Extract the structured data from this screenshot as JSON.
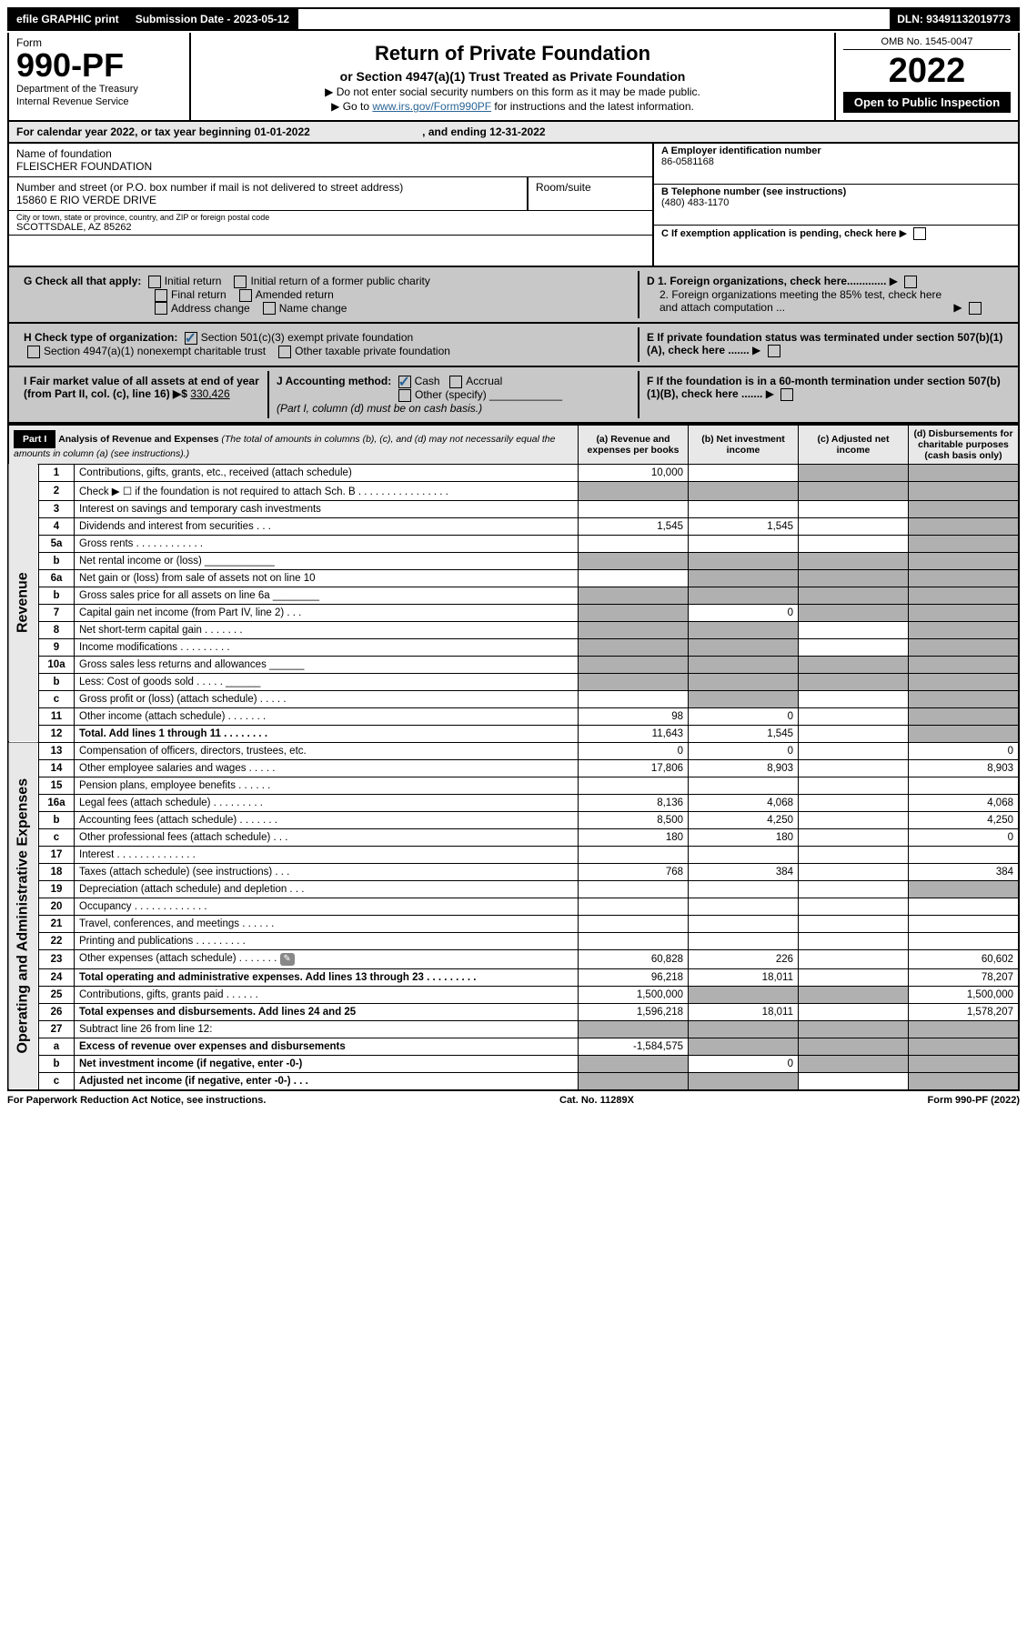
{
  "topbar": {
    "efile": "efile GRAPHIC print",
    "submission_label": "Submission Date - 2023-05-12",
    "dln": "DLN: 93491132019773"
  },
  "header": {
    "form_word": "Form",
    "form_number": "990-PF",
    "dept1": "Department of the Treasury",
    "dept2": "Internal Revenue Service",
    "title": "Return of Private Foundation",
    "subtitle": "or Section 4947(a)(1) Trust Treated as Private Foundation",
    "note1": "▶ Do not enter social security numbers on this form as it may be made public.",
    "note2_pre": "▶ Go to ",
    "note2_link": "www.irs.gov/Form990PF",
    "note2_post": " for instructions and the latest information.",
    "omb": "OMB No. 1545-0047",
    "year": "2022",
    "open": "Open to Public Inspection"
  },
  "calendar": {
    "text_a": "For calendar year 2022, or tax year beginning 01-01-2022",
    "text_b": ", and ending 12-31-2022"
  },
  "info": {
    "name_label": "Name of foundation",
    "name": "FLEISCHER FOUNDATION",
    "addr_label": "Number and street (or P.O. box number if mail is not delivered to street address)",
    "addr": "15860 E RIO VERDE DRIVE",
    "room_label": "Room/suite",
    "city_label": "City or town, state or province, country, and ZIP or foreign postal code",
    "city": "SCOTTSDALE, AZ  85262",
    "ein_label": "A Employer identification number",
    "ein": "86-0581168",
    "tel_label": "B Telephone number (see instructions)",
    "tel": "(480) 483-1170",
    "c_label": "C If exemption application is pending, check here",
    "d1": "D 1. Foreign organizations, check here.............",
    "d2": "2. Foreign organizations meeting the 85% test, check here and attach computation ...",
    "e": "E  If private foundation status was terminated under section 507(b)(1)(A), check here .......",
    "f": "F  If the foundation is in a 60-month termination under section 507(b)(1)(B), check here .......",
    "g_label": "G Check all that apply:",
    "g_opts": [
      "Initial return",
      "Initial return of a former public charity",
      "Final return",
      "Amended return",
      "Address change",
      "Name change"
    ],
    "h_label": "H Check type of organization:",
    "h_opts": [
      "Section 501(c)(3) exempt private foundation",
      "Section 4947(a)(1) nonexempt charitable trust",
      "Other taxable private foundation"
    ],
    "i_label": "I Fair market value of all assets at end of year (from Part II, col. (c), line 16) ▶$",
    "i_value": "330,426",
    "j_label": "J Accounting method:",
    "j_cash": "Cash",
    "j_accrual": "Accrual",
    "j_other": "Other (specify)",
    "j_note": "(Part I, column (d) must be on cash basis.)"
  },
  "part1": {
    "label": "Part I",
    "title": "Analysis of Revenue and Expenses",
    "title_note": "(The total of amounts in columns (b), (c), and (d) may not necessarily equal the amounts in column (a) (see instructions).)",
    "col_a": "(a)   Revenue and expenses per books",
    "col_b": "(b)   Net investment income",
    "col_c": "(c)   Adjusted net income",
    "col_d": "(d)   Disbursements for charitable purposes (cash basis only)"
  },
  "side_labels": {
    "revenue": "Revenue",
    "expenses": "Operating and Administrative Expenses"
  },
  "rows": [
    {
      "n": "1",
      "desc": "Contributions, gifts, grants, etc., received (attach schedule)",
      "a": "10,000",
      "b": "",
      "c_grey": true,
      "d_grey": true
    },
    {
      "n": "2",
      "desc": "Check ▶ ☐ if the foundation is not required to attach Sch. B     .  .  .  .  .  .  .  .  .  .  .  .  .  .  .  .",
      "a_grey": true,
      "b_grey": true,
      "c_grey": true,
      "d_grey": true
    },
    {
      "n": "3",
      "desc": "Interest on savings and temporary cash investments",
      "a": "",
      "b": "",
      "c": "",
      "d_grey": true
    },
    {
      "n": "4",
      "desc": "Dividends and interest from securities    .   .   .",
      "a": "1,545",
      "b": "1,545",
      "c": "",
      "d_grey": true
    },
    {
      "n": "5a",
      "desc": "Gross rents    .   .   .   .   .   .   .   .   .   .   .   .",
      "a": "",
      "b": "",
      "c": "",
      "d_grey": true
    },
    {
      "n": "b",
      "desc": "Net rental income or (loss)  ____________",
      "a_grey": true,
      "b_grey": true,
      "c_grey": true,
      "d_grey": true
    },
    {
      "n": "6a",
      "desc": "Net gain or (loss) from sale of assets not on line 10",
      "a": "",
      "b_grey": true,
      "c_grey": true,
      "d_grey": true
    },
    {
      "n": "b",
      "desc": "Gross sales price for all assets on line 6a ________",
      "a_grey": true,
      "b_grey": true,
      "c_grey": true,
      "d_grey": true
    },
    {
      "n": "7",
      "desc": "Capital gain net income (from Part IV, line 2)   .   .   .",
      "a_grey": true,
      "b": "0",
      "c_grey": true,
      "d_grey": true
    },
    {
      "n": "8",
      "desc": "Net short-term capital gain   .   .   .   .   .   .   .",
      "a_grey": true,
      "b_grey": true,
      "c": "",
      "d_grey": true
    },
    {
      "n": "9",
      "desc": "Income modifications  .   .   .   .   .   .   .   .   .",
      "a_grey": true,
      "b_grey": true,
      "c": "",
      "d_grey": true
    },
    {
      "n": "10a",
      "desc": "Gross sales less returns and allowances  ______",
      "a_grey": true,
      "b_grey": true,
      "c_grey": true,
      "d_grey": true
    },
    {
      "n": "b",
      "desc": "Less: Cost of goods sold    .   .   .   .   .  ______",
      "a_grey": true,
      "b_grey": true,
      "c_grey": true,
      "d_grey": true
    },
    {
      "n": "c",
      "desc": "Gross profit or (loss) (attach schedule)    .   .   .   .   .",
      "a": "",
      "b_grey": true,
      "c": "",
      "d_grey": true
    },
    {
      "n": "11",
      "desc": "Other income (attach schedule)    .   .   .   .   .   .   .",
      "a": "98",
      "b": "0",
      "c": "",
      "d_grey": true
    },
    {
      "n": "12",
      "desc": "Total. Add lines 1 through 11    .   .   .   .   .   .   .   .",
      "bold": true,
      "a": "11,643",
      "b": "1,545",
      "c": "",
      "d_grey": true
    },
    {
      "n": "13",
      "desc": "Compensation of officers, directors, trustees, etc.",
      "a": "0",
      "b": "0",
      "c": "",
      "d": "0"
    },
    {
      "n": "14",
      "desc": "Other employee salaries and wages    .   .   .   .   .",
      "a": "17,806",
      "b": "8,903",
      "c": "",
      "d": "8,903"
    },
    {
      "n": "15",
      "desc": "Pension plans, employee benefits  .   .   .   .   .   .",
      "a": "",
      "b": "",
      "c": "",
      "d": ""
    },
    {
      "n": "16a",
      "desc": "Legal fees (attach schedule) .   .   .   .   .   .   .   .   .",
      "a": "8,136",
      "b": "4,068",
      "c": "",
      "d": "4,068"
    },
    {
      "n": "b",
      "desc": "Accounting fees (attach schedule) .   .   .   .   .   .   .",
      "a": "8,500",
      "b": "4,250",
      "c": "",
      "d": "4,250"
    },
    {
      "n": "c",
      "desc": "Other professional fees (attach schedule)    .   .   .",
      "a": "180",
      "b": "180",
      "c": "",
      "d": "0"
    },
    {
      "n": "17",
      "desc": "Interest .   .   .   .   .   .   .   .   .   .   .   .   .   .",
      "a": "",
      "b": "",
      "c": "",
      "d": ""
    },
    {
      "n": "18",
      "desc": "Taxes (attach schedule) (see instructions)    .   .   .",
      "a": "768",
      "b": "384",
      "c": "",
      "d": "384"
    },
    {
      "n": "19",
      "desc": "Depreciation (attach schedule) and depletion   .   .   .",
      "a": "",
      "b": "",
      "c": "",
      "d_grey": true
    },
    {
      "n": "20",
      "desc": "Occupancy .   .   .   .   .   .   .   .   .   .   .   .   .",
      "a": "",
      "b": "",
      "c": "",
      "d": ""
    },
    {
      "n": "21",
      "desc": "Travel, conferences, and meetings .   .   .   .   .   .",
      "a": "",
      "b": "",
      "c": "",
      "d": ""
    },
    {
      "n": "22",
      "desc": "Printing and publications  .   .   .   .   .   .   .   .   .",
      "a": "",
      "b": "",
      "c": "",
      "d": ""
    },
    {
      "n": "23",
      "desc": "Other expenses (attach schedule) .   .   .   .   .   .   .",
      "icon": true,
      "a": "60,828",
      "b": "226",
      "c": "",
      "d": "60,602"
    },
    {
      "n": "24",
      "desc": "Total operating and administrative expenses. Add lines 13 through 23   .   .   .   .   .   .   .   .   .",
      "bold": true,
      "a": "96,218",
      "b": "18,011",
      "c": "",
      "d": "78,207"
    },
    {
      "n": "25",
      "desc": "Contributions, gifts, grants paid    .   .   .   .   .   .",
      "a": "1,500,000",
      "b_grey": true,
      "c_grey": true,
      "d": "1,500,000"
    },
    {
      "n": "26",
      "desc": "Total expenses and disbursements. Add lines 24 and 25",
      "bold": true,
      "a": "1,596,218",
      "b": "18,011",
      "c": "",
      "d": "1,578,207"
    },
    {
      "n": "27",
      "desc": "Subtract line 26 from line 12:",
      "a_grey": true,
      "b_grey": true,
      "c_grey": true,
      "d_grey": true
    },
    {
      "n": "a",
      "desc": "Excess of revenue over expenses and disbursements",
      "bold": true,
      "a": "-1,584,575",
      "b_grey": true,
      "c_grey": true,
      "d_grey": true
    },
    {
      "n": "b",
      "desc": "Net investment income (if negative, enter -0-)",
      "bold": true,
      "a_grey": true,
      "b": "0",
      "c_grey": true,
      "d_grey": true
    },
    {
      "n": "c",
      "desc": "Adjusted net income (if negative, enter -0-)   .   .   .",
      "bold": true,
      "a_grey": true,
      "b_grey": true,
      "c": "",
      "d_grey": true
    }
  ],
  "footer": {
    "left": "For Paperwork Reduction Act Notice, see instructions.",
    "mid": "Cat. No. 11289X",
    "right": "Form 990-PF (2022)"
  },
  "colors": {
    "link": "#2a6496",
    "header_grey": "#e8e8e8",
    "cell_grey": "#b0b0b0",
    "dark_grey": "#c8c8c8"
  }
}
